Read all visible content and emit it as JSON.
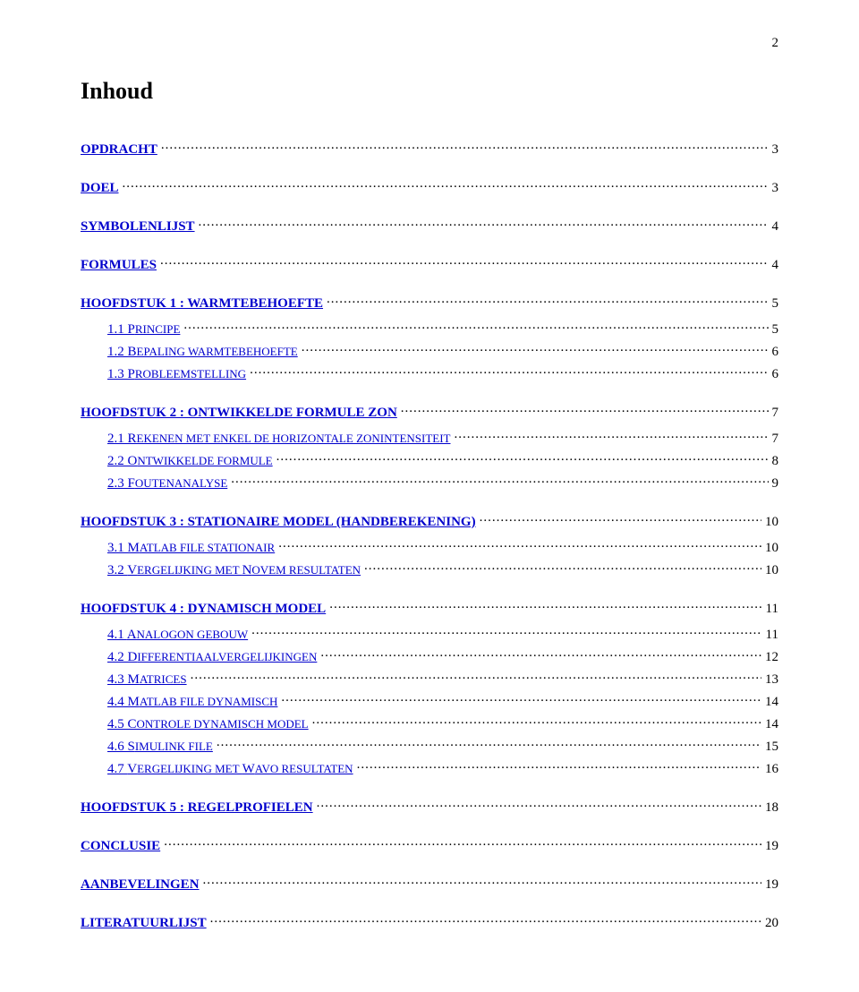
{
  "page_number": "2",
  "title": "Inhoud",
  "colors": {
    "link_blue": "#0000cc",
    "text_black": "#000000",
    "background": "#ffffff"
  },
  "toc": [
    {
      "level": 1,
      "label": "OPDRACHT",
      "page": "3",
      "first": true
    },
    {
      "level": 1,
      "label": "DOEL",
      "page": "3"
    },
    {
      "level": 1,
      "label": "SYMBOLENLIJST",
      "page": "4"
    },
    {
      "level": 1,
      "label": "FORMULES",
      "page": "4"
    },
    {
      "level": 1,
      "label": "HOOFDSTUK 1 :  WARMTEBEHOEFTE",
      "page": "5"
    },
    {
      "level": 2,
      "num": "1.1",
      "first": "P",
      "rest": "RINCIPE",
      "page": "5"
    },
    {
      "level": 2,
      "num": "1.2",
      "first": "B",
      "rest": "EPALING WARMTEBEHOEFTE",
      "page": "6"
    },
    {
      "level": 2,
      "num": "1.3",
      "first": "P",
      "rest": "ROBLEEMSTELLING",
      "page": "6"
    },
    {
      "level": 1,
      "label": "HOOFDSTUK 2 :  ONTWIKKELDE FORMULE ZON",
      "page": "7"
    },
    {
      "level": 2,
      "num": "2.1",
      "first": "R",
      "rest": "EKENEN MET ENKEL DE HORIZONTALE ZONINTENSITEIT",
      "page": "7"
    },
    {
      "level": 2,
      "num": "2.2",
      "first": "O",
      "rest": "NTWIKKELDE FORMULE",
      "page": "8"
    },
    {
      "level": 2,
      "num": "2.3",
      "first": "F",
      "rest": "OUTENANALYSE",
      "page": "9"
    },
    {
      "level": 1,
      "label": "HOOFDSTUK 3 :  STATIONAIRE MODEL (HANDBEREKENING)",
      "page": "10"
    },
    {
      "level": 2,
      "num": "3.1",
      "first": "M",
      "rest": "ATLAB FILE STATIONAIR",
      "page": "10"
    },
    {
      "level": 2,
      "num": "3.2",
      "first": "V",
      "rest": "ERGELIJKING MET NOVEM RESULTATEN",
      "page": "10",
      "mixed": [
        {
          "big": "V"
        },
        {
          "small": "ERGELIJKING MET "
        },
        {
          "big": "N"
        },
        {
          "small": "OVEM RESULTATEN"
        }
      ]
    },
    {
      "level": 1,
      "label": "HOOFDSTUK 4 :  DYNAMISCH MODEL",
      "page": "11"
    },
    {
      "level": 2,
      "num": "4.1",
      "first": "A",
      "rest": "NALOGON GEBOUW",
      "page": "11"
    },
    {
      "level": 2,
      "num": "4.2",
      "first": "D",
      "rest": "IFFERENTIAALVERGELIJKINGEN",
      "page": "12"
    },
    {
      "level": 2,
      "num": "4.3",
      "first": "M",
      "rest": "ATRICES",
      "page": "13"
    },
    {
      "level": 2,
      "num": "4.4",
      "first": "M",
      "rest": "ATLAB FILE DYNAMISCH",
      "page": "14"
    },
    {
      "level": 2,
      "num": "4.5",
      "first": "C",
      "rest": "ONTROLE DYNAMISCH MODEL",
      "page": "14"
    },
    {
      "level": 2,
      "num": "4.6",
      "first": "S",
      "rest": "IMULINK FILE",
      "page": "15"
    },
    {
      "level": 2,
      "num": "4.7",
      "first": "V",
      "rest": "ERGELIJKING MET WAVO RESULTATEN",
      "page": "16",
      "mixed": [
        {
          "big": "V"
        },
        {
          "small": "ERGELIJKING MET "
        },
        {
          "big": "W"
        },
        {
          "small": "AVO RESULTATEN"
        }
      ]
    },
    {
      "level": 1,
      "label": "HOOFDSTUK 5 :  REGELPROFIELEN",
      "page": "18"
    },
    {
      "level": 1,
      "label": "CONCLUSIE",
      "page": "19"
    },
    {
      "level": 1,
      "label": "AANBEVELINGEN",
      "page": "19"
    },
    {
      "level": 1,
      "label": "LITERATUURLIJST",
      "page": "20"
    }
  ]
}
